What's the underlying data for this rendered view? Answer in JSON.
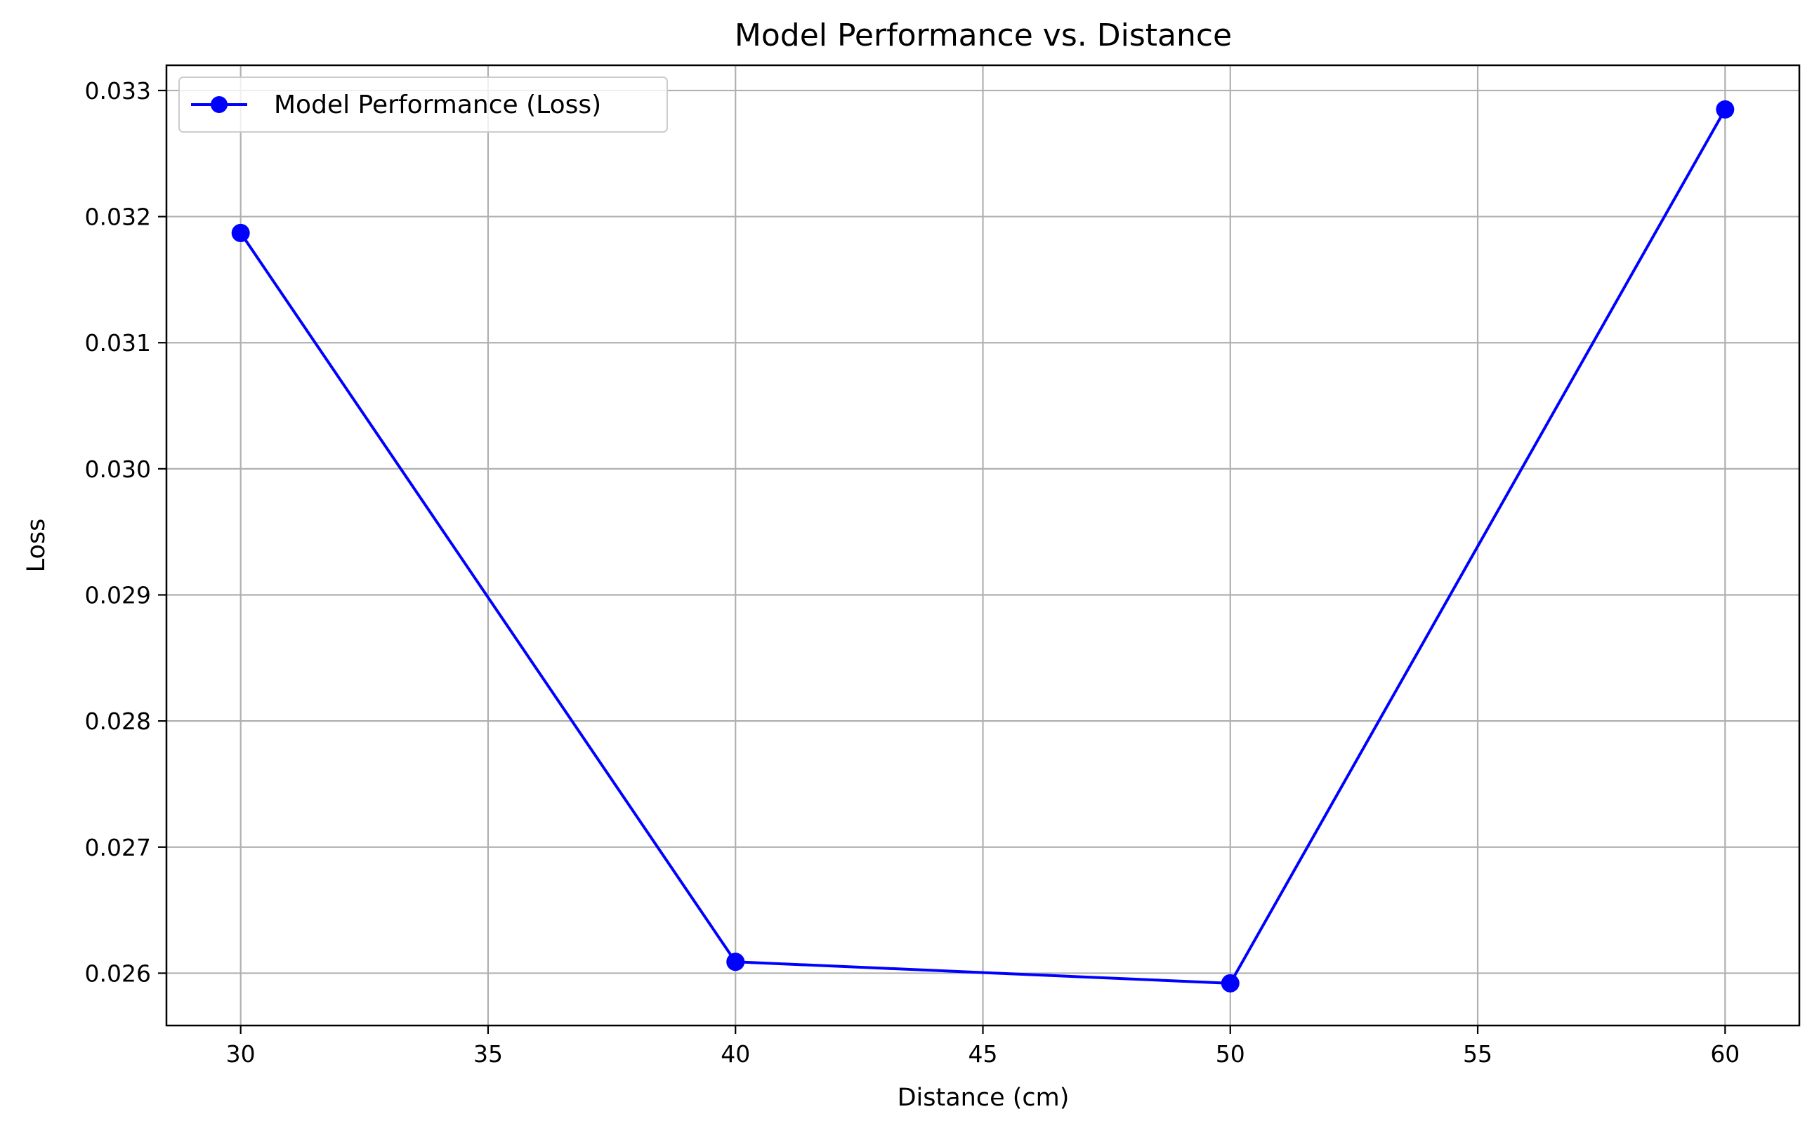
{
  "chart_data": {
    "type": "line",
    "title": "Model Performance vs. Distance",
    "xlabel": "Distance (cm)",
    "ylabel": "Loss",
    "x": [
      30,
      40,
      50,
      60
    ],
    "series": [
      {
        "name": "Model Performance (Loss)",
        "values": [
          0.03187,
          0.02609,
          0.02592,
          0.03285
        ],
        "color": "#0000ff",
        "marker": "circle"
      }
    ],
    "xlim": [
      28.5,
      61.5
    ],
    "ylim": [
      0.025585,
      0.0332
    ],
    "xticks": [
      30,
      35,
      40,
      45,
      50,
      55,
      60
    ],
    "xtick_labels": [
      "30",
      "35",
      "40",
      "45",
      "50",
      "55",
      "60"
    ],
    "yticks": [
      0.026,
      0.027,
      0.028,
      0.029,
      0.03,
      0.031,
      0.032,
      0.033
    ],
    "ytick_labels": [
      "0.026",
      "0.027",
      "0.028",
      "0.029",
      "0.030",
      "0.031",
      "0.032",
      "0.033"
    ],
    "grid": true,
    "grid_color": "#b0b0b0",
    "legend_position": "top-left"
  }
}
